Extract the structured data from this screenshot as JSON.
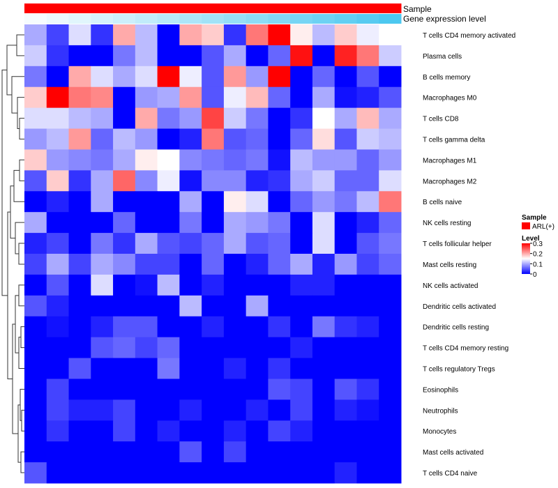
{
  "chart_data": {
    "type": "heatmap",
    "title": "",
    "annotation_tracks": [
      {
        "name": "Sample",
        "color": "#ff0000"
      },
      {
        "name": "Gene expression level",
        "low_color": "#ffffff",
        "high_color": "#4dc8f0"
      }
    ],
    "rows": [
      "T cells CD4 memory activated",
      "Plasma cells",
      "B cells memory",
      "Macrophages M0",
      "T cells CD8",
      "T cells gamma delta",
      "Macrophages M1",
      "Macrophages M2",
      "B cells naive",
      "NK cells resting",
      "T cells follicular helper",
      "Mast cells resting",
      "NK cells activated",
      "Dendritic cells activated",
      "Dendritic cells resting",
      "T cells CD4 memory resting",
      "T cells regulatory  Tregs",
      "Eosinophils",
      "Neutrophils",
      "Monocytes",
      "Mast cells activated",
      "T cells CD4 naive"
    ],
    "values": [
      [
        0.1,
        0.04,
        0.13,
        0.03,
        0.2,
        0.11,
        0.0,
        0.2,
        0.18,
        0.03,
        0.23,
        0.3,
        0.16,
        0.11,
        0.18,
        0.14,
        0.15
      ],
      [
        0.12,
        0.03,
        0.0,
        0.0,
        0.07,
        0.11,
        0.0,
        0.0,
        0.05,
        0.1,
        0.0,
        0.06,
        0.29,
        0.0,
        0.28,
        0.23,
        0.12
      ],
      [
        0.07,
        0.0,
        0.2,
        0.13,
        0.1,
        0.13,
        0.3,
        0.14,
        0.05,
        0.21,
        0.09,
        0.3,
        0.0,
        0.06,
        0.0,
        0.05,
        0.0
      ],
      [
        0.18,
        0.3,
        0.23,
        0.22,
        0.0,
        0.09,
        0.1,
        0.21,
        0.05,
        0.14,
        0.19,
        0.06,
        0.0,
        0.1,
        0.01,
        0.02,
        0.05
      ],
      [
        0.13,
        0.13,
        0.11,
        0.1,
        0.0,
        0.2,
        0.07,
        0.09,
        0.26,
        0.12,
        0.07,
        0.0,
        0.03,
        0.15,
        0.1,
        0.19,
        0.1
      ],
      [
        0.09,
        0.11,
        0.21,
        0.06,
        0.11,
        0.09,
        0.0,
        0.02,
        0.23,
        0.05,
        0.06,
        0.0,
        0.06,
        0.17,
        0.05,
        0.12,
        0.11
      ],
      [
        0.18,
        0.09,
        0.08,
        0.07,
        0.1,
        0.16,
        0.15,
        0.08,
        0.07,
        0.06,
        0.07,
        0.01,
        0.11,
        0.09,
        0.09,
        0.06,
        0.09
      ],
      [
        0.05,
        0.18,
        0.03,
        0.1,
        0.24,
        0.08,
        0.14,
        0.01,
        0.08,
        0.08,
        0.02,
        0.03,
        0.1,
        0.12,
        0.06,
        0.06,
        0.13
      ],
      [
        0.0,
        0.02,
        0.0,
        0.1,
        0.0,
        0.0,
        0.0,
        0.1,
        0.0,
        0.16,
        0.13,
        0.0,
        0.06,
        0.09,
        0.07,
        0.11,
        0.23
      ],
      [
        0.1,
        0.0,
        0.0,
        0.0,
        0.06,
        0.0,
        0.0,
        0.07,
        0.0,
        0.1,
        0.09,
        0.07,
        0.0,
        0.13,
        0.0,
        0.02,
        0.06
      ],
      [
        0.02,
        0.04,
        0.0,
        0.07,
        0.03,
        0.1,
        0.05,
        0.04,
        0.06,
        0.1,
        0.05,
        0.06,
        0.0,
        0.13,
        0.0,
        0.05,
        0.07
      ],
      [
        0.04,
        0.1,
        0.04,
        0.1,
        0.08,
        0.04,
        0.04,
        0.0,
        0.06,
        0.0,
        0.02,
        0.06,
        0.1,
        0.02,
        0.09,
        0.04,
        0.06
      ],
      [
        0.0,
        0.05,
        0.0,
        0.13,
        0.0,
        0.01,
        0.11,
        0.0,
        0.02,
        0.0,
        0.0,
        0.0,
        0.02,
        0.02,
        0.0,
        0.0,
        0.0
      ],
      [
        0.05,
        0.02,
        0.0,
        0.0,
        0.0,
        0.0,
        0.0,
        0.11,
        0.0,
        0.0,
        0.1,
        0.0,
        0.0,
        0.0,
        0.0,
        0.0,
        0.0
      ],
      [
        0.0,
        0.01,
        0.0,
        0.02,
        0.05,
        0.05,
        0.0,
        0.0,
        0.02,
        0.0,
        0.0,
        0.03,
        0.0,
        0.07,
        0.03,
        0.02,
        0.0
      ],
      [
        0.0,
        0.0,
        0.0,
        0.05,
        0.06,
        0.04,
        0.06,
        0.0,
        0.0,
        0.0,
        0.0,
        0.0,
        0.02,
        0.0,
        0.0,
        0.0,
        0.0
      ],
      [
        0.0,
        0.0,
        0.05,
        0.0,
        0.0,
        0.0,
        0.07,
        0.0,
        0.0,
        0.02,
        0.0,
        0.03,
        0.0,
        0.0,
        0.0,
        0.0,
        0.0
      ],
      [
        0.0,
        0.04,
        0.0,
        0.0,
        0.0,
        0.0,
        0.0,
        0.0,
        0.0,
        0.0,
        0.0,
        0.05,
        0.04,
        0.0,
        0.05,
        0.03,
        0.0
      ],
      [
        0.0,
        0.04,
        0.02,
        0.02,
        0.04,
        0.0,
        0.0,
        0.02,
        0.0,
        0.0,
        0.02,
        0.0,
        0.04,
        0.0,
        0.02,
        0.01,
        0.0
      ],
      [
        0.0,
        0.03,
        0.0,
        0.0,
        0.04,
        0.0,
        0.02,
        0.0,
        0.0,
        0.02,
        0.0,
        0.04,
        0.02,
        0.0,
        0.0,
        0.0,
        0.0
      ],
      [
        0.0,
        0.0,
        0.0,
        0.0,
        0.0,
        0.0,
        0.0,
        0.05,
        0.0,
        0.04,
        0.0,
        0.0,
        0.0,
        0.0,
        0.0,
        0.0,
        0.0
      ],
      [
        0.05,
        0.0,
        0.0,
        0.0,
        0.0,
        0.0,
        0.0,
        0.0,
        0.0,
        0.0,
        0.0,
        0.0,
        0.0,
        0.0,
        0.02,
        0.0,
        0.0
      ]
    ],
    "color_scale": {
      "min": 0,
      "max": 0.3,
      "low_color": "#0000ff",
      "mid_color": "#ffffff",
      "high_color": "#ff0000",
      "mid_value": 0.15
    },
    "legend": {
      "sample_title": "Sample",
      "sample_entry": "ARL(+)",
      "level_title": "Level",
      "level_ticks": [
        "0.3",
        "0.2",
        "0.1",
        "0"
      ],
      "level_tick_values": [
        0.3,
        0.2,
        0.1,
        0
      ]
    },
    "dendrogram": "row-clustering (left side)"
  }
}
